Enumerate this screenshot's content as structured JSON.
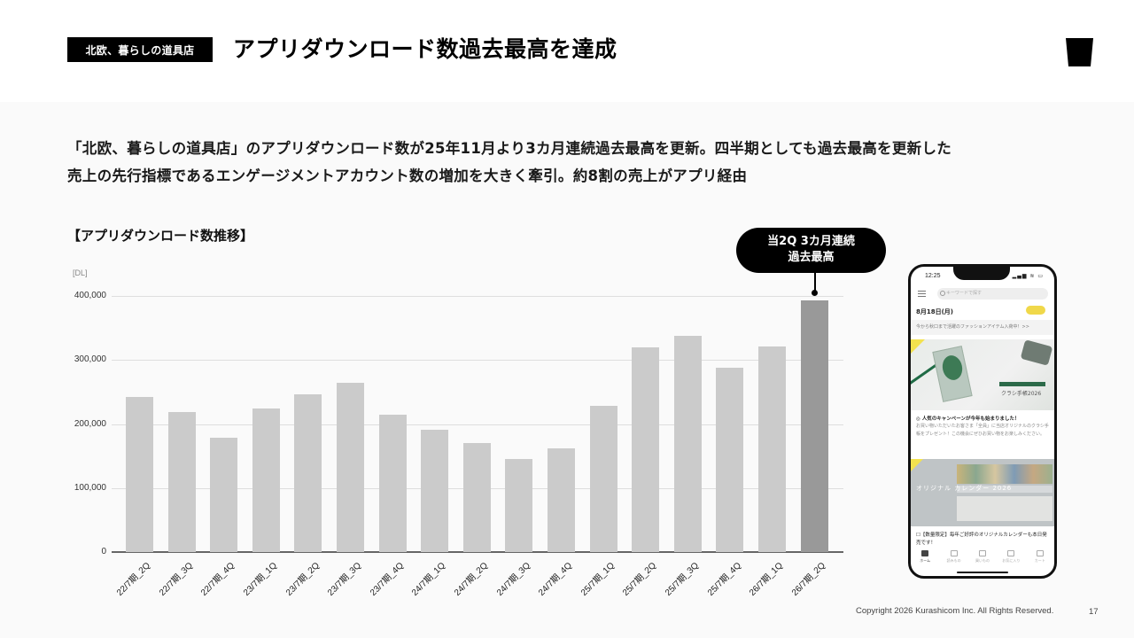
{
  "header": {
    "brand_badge": "北欧、暮らしの道具店",
    "title": "アプリダウンロード数過去最高を達成",
    "logo_icon": "cup-logo-icon"
  },
  "lead": {
    "line1": "「北欧、暮らしの道具店」のアプリダウンロード数が25年11月より3カ月連続過去最高を更新。四半期としても過去最高を更新した",
    "line2": "売上の先行指標であるエンゲージメントアカウント数の増加を大きく牽引。約8割の売上がアプリ経由"
  },
  "chart_data": {
    "type": "bar",
    "title": "【アプリダウンロード数推移】",
    "xlabel": "",
    "ylabel": "[DL]",
    "ylim": [
      0,
      400000
    ],
    "yticks": [
      "0",
      "100,000",
      "200,000",
      "300,000",
      "400,000"
    ],
    "grid": true,
    "legend": "none",
    "categories": [
      "22/7期_2Q",
      "22/7期_3Q",
      "22/7期_4Q",
      "23/7期_1Q",
      "23/7期_2Q",
      "23/7期_3Q",
      "23/7期_4Q",
      "24/7期_1Q",
      "24/7期_2Q",
      "24/7期_3Q",
      "24/7期_4Q",
      "25/7期_1Q",
      "25/7期_2Q",
      "25/7期_3Q",
      "25/7期_4Q",
      "26/7期_1Q",
      "26/7期_2Q"
    ],
    "values": [
      242000,
      219000,
      179000,
      224000,
      246000,
      264000,
      215000,
      191000,
      170000,
      145000,
      162000,
      228000,
      320000,
      338000,
      288000,
      321000,
      393000
    ],
    "highlight_index": 16,
    "colors": {
      "bar": "#cbcbcb",
      "highlight": "#999999"
    },
    "annotation": {
      "line1": "当2Q 3カ月連続",
      "line2": "過去最高",
      "target": "26/7期_2Q"
    }
  },
  "phone": {
    "time": "12:25",
    "status": "▂▄▆ ≋ ▭",
    "search_placeholder": "キーワードで探す",
    "date": "8月18日(月)",
    "notice": "今から秋口まで活躍のファッションアイテム入荷中！>>",
    "banner1_text": "クラシ手帳2026",
    "post1_title": "◎ 人気のキャンペーンが今年も始まりました！",
    "post1_body": "お買い物いただいたお客さま「全員」に当店オリジナルのクラシ手帳をプレゼント！この機会にぜひお買い物をお楽しみください。",
    "banner2_text": "オリジナル カレンダー 2026",
    "post2_title": "☐【数量限定】毎年ご好評のオリジナルカレンダーも本日発売です！",
    "tabs": [
      {
        "label": "ホーム",
        "icon": "home-icon"
      },
      {
        "label": "読みもの",
        "icon": "book-icon"
      },
      {
        "label": "買いもの",
        "icon": "shop-icon"
      },
      {
        "label": "お気に入り",
        "icon": "heart-icon"
      },
      {
        "label": "カート",
        "icon": "cart-icon"
      }
    ]
  },
  "footer": {
    "copyright": "Copyright 2026 Kurashicom Inc. All Rights Reserved.",
    "page_number": "17"
  }
}
